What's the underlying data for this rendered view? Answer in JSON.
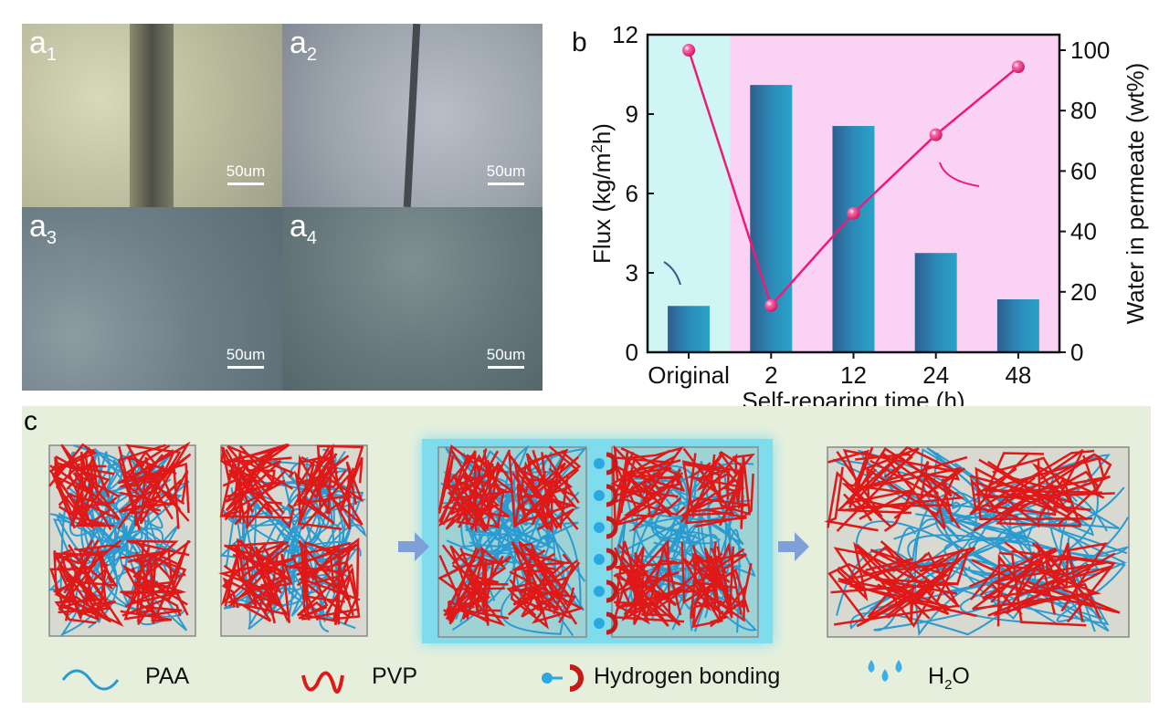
{
  "panel_a": {
    "images": [
      {
        "label": "a",
        "sub": "1",
        "scale": "50um"
      },
      {
        "label": "a",
        "sub": "2",
        "scale": "50um"
      },
      {
        "label": "a",
        "sub": "3",
        "scale": "50um"
      },
      {
        "label": "a",
        "sub": "4",
        "scale": "50um"
      }
    ]
  },
  "panel_b_label": "b",
  "chart_data": {
    "type": "bar",
    "categories": [
      "Original",
      "2",
      "12",
      "24",
      "48"
    ],
    "xlabel": "Self-reparing time (h)",
    "ylabel": "Flux (kg/m2h)",
    "ylabel_parts": [
      "Flux (kg/m",
      "2",
      "h)"
    ],
    "y2label": "Water in permeate (wt%)",
    "ylim": [
      0,
      12
    ],
    "y2lim": [
      0,
      105
    ],
    "yticks": [
      "0",
      "3",
      "6",
      "9",
      "12"
    ],
    "y2ticks": [
      "0",
      "20",
      "40",
      "60",
      "80",
      "100"
    ],
    "series": [
      {
        "name": "Flux",
        "axis": "left",
        "type": "bar",
        "values": [
          1.75,
          10.1,
          8.55,
          3.75,
          2.0
        ],
        "color": "#2b8fc0"
      },
      {
        "name": "Water in permeate",
        "axis": "right",
        "type": "line",
        "values": [
          100,
          15.5,
          46,
          72,
          94.5
        ],
        "color": "#ee1a78"
      }
    ],
    "background_regions": [
      {
        "from": "Original",
        "color": "#cff5f5"
      },
      {
        "from": "2",
        "color": "#f9d2f4"
      }
    ]
  },
  "panel_c": {
    "label": "c",
    "legend": [
      {
        "icon": "paa-chain-icon",
        "label": "PAA"
      },
      {
        "icon": "pvp-chain-icon",
        "label": "PVP"
      },
      {
        "icon": "hydrogen-bond-icon",
        "label": "Hydrogen bonding"
      },
      {
        "icon": "water-drops-icon",
        "label": "H",
        "sub": "2",
        "tail": "O"
      }
    ]
  }
}
